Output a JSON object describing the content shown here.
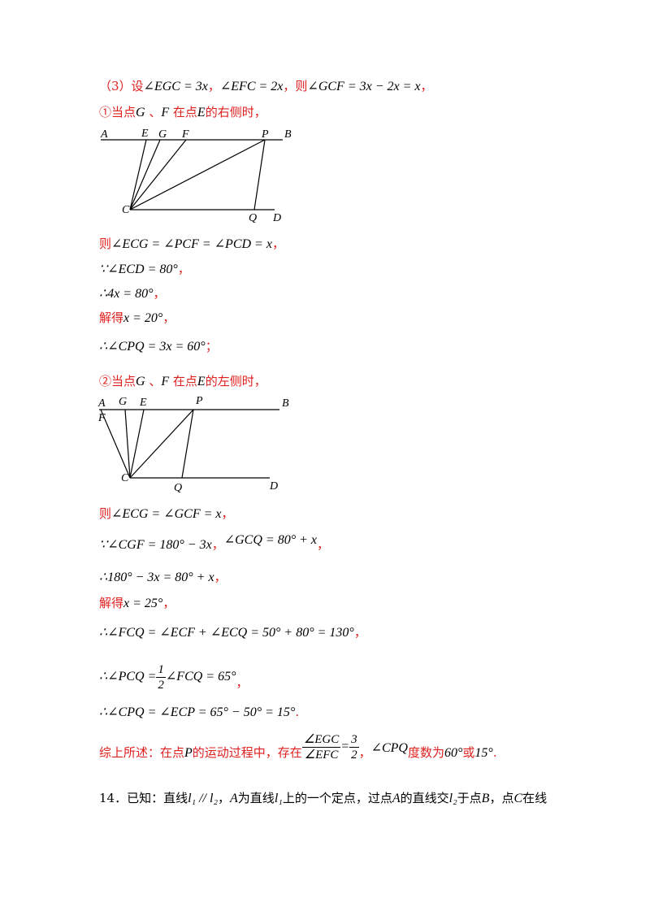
{
  "lines": {
    "l1": {
      "pre": "（3）设",
      "m1": "∠EGC = 3x",
      "sep1": "，",
      "m2": "∠EFC = 2x",
      "sep2": "，则",
      "m3": "∠GCF = 3x − 2x = x",
      "post": "，"
    },
    "l2": {
      "pre": "①当点",
      "g": "G",
      "mid": " 、",
      "f": "F",
      "mid2": " 在点",
      "e": "E",
      "post": "的右侧时，"
    },
    "l3": {
      "pre": "则",
      "m": "∠ECG = ∠PCF = ∠PCD = x",
      "post": "，"
    },
    "l4": {
      "pre": "∵",
      "m": "∠ECD = 80°",
      "post": "，"
    },
    "l5": {
      "pre": "∴",
      "m": "4x = 80°",
      "post": "，"
    },
    "l6": {
      "pre": "解得",
      "m": "x = 20°",
      "post": "，"
    },
    "l7": {
      "pre": "∴",
      "m": "∠CPQ = 3x = 60°",
      "post": "；"
    },
    "l8": {
      "pre": "②当点",
      "g": "G",
      "mid": " 、",
      "f": "F",
      "mid2": " 在点",
      "e": "E",
      "post": "的左侧时，"
    },
    "l9": {
      "pre": "则",
      "m": "∠ECG = ∠GCF = x",
      "post": "，"
    },
    "l10": {
      "pre": "∵",
      "m1": "∠CGF = 180° − 3x",
      "sep": "，",
      "m2": "∠GCQ = 80° + x",
      "post": "，"
    },
    "l11": {
      "pre": "∴",
      "m": "180° − 3x = 80° + x",
      "post": "，"
    },
    "l12": {
      "pre": "解得",
      "m": "x = 25°",
      "post": "，"
    },
    "l13": {
      "pre": "∴",
      "m": "∠FCQ = ∠ECF + ∠ECQ = 50° + 80° = 130°",
      "post": "，"
    },
    "l14": {
      "pre": "∴",
      "m1": "∠PCQ =",
      "num": "1",
      "den": "2",
      "m2": "∠FCQ = 65°",
      "post": "，"
    },
    "l15": {
      "pre": "∴",
      "m": "∠CPQ = ∠ECP = 65° − 50° = 15°",
      "post": "."
    },
    "l16": {
      "pre": "综上所述：在点",
      "p": "P",
      "mid": "的运动过程中，存在",
      "num": "∠EGC",
      "den": "∠EFC",
      "eq": "=",
      "num2": "3",
      "den2": "2",
      "sep": "，",
      "m": "∠CPQ",
      "mid2": "度数为",
      "v1": "60°",
      "or": "或",
      "v2": "15°",
      "post": "."
    },
    "l17": {
      "pre": "14．已知：直线",
      "m1": "l₁ // l₂",
      "s1": "，",
      "a": "A",
      "t1": "为直线",
      "l1": "l₁",
      "t2": "上的一个定点，过点",
      "a2": "A",
      "t3": "的直线交",
      "l2": "l₂",
      "t4": "于点",
      "b": "B",
      "t5": "，点",
      "c": "C",
      "t6": "在线"
    }
  },
  "figure1": {
    "labels": [
      "A",
      "E",
      "G",
      "F",
      "P",
      "B",
      "C",
      "Q",
      "D"
    ]
  },
  "figure2": {
    "labels": [
      "A",
      "F",
      "G",
      "E",
      "P",
      "B",
      "C",
      "Q",
      "D"
    ]
  }
}
